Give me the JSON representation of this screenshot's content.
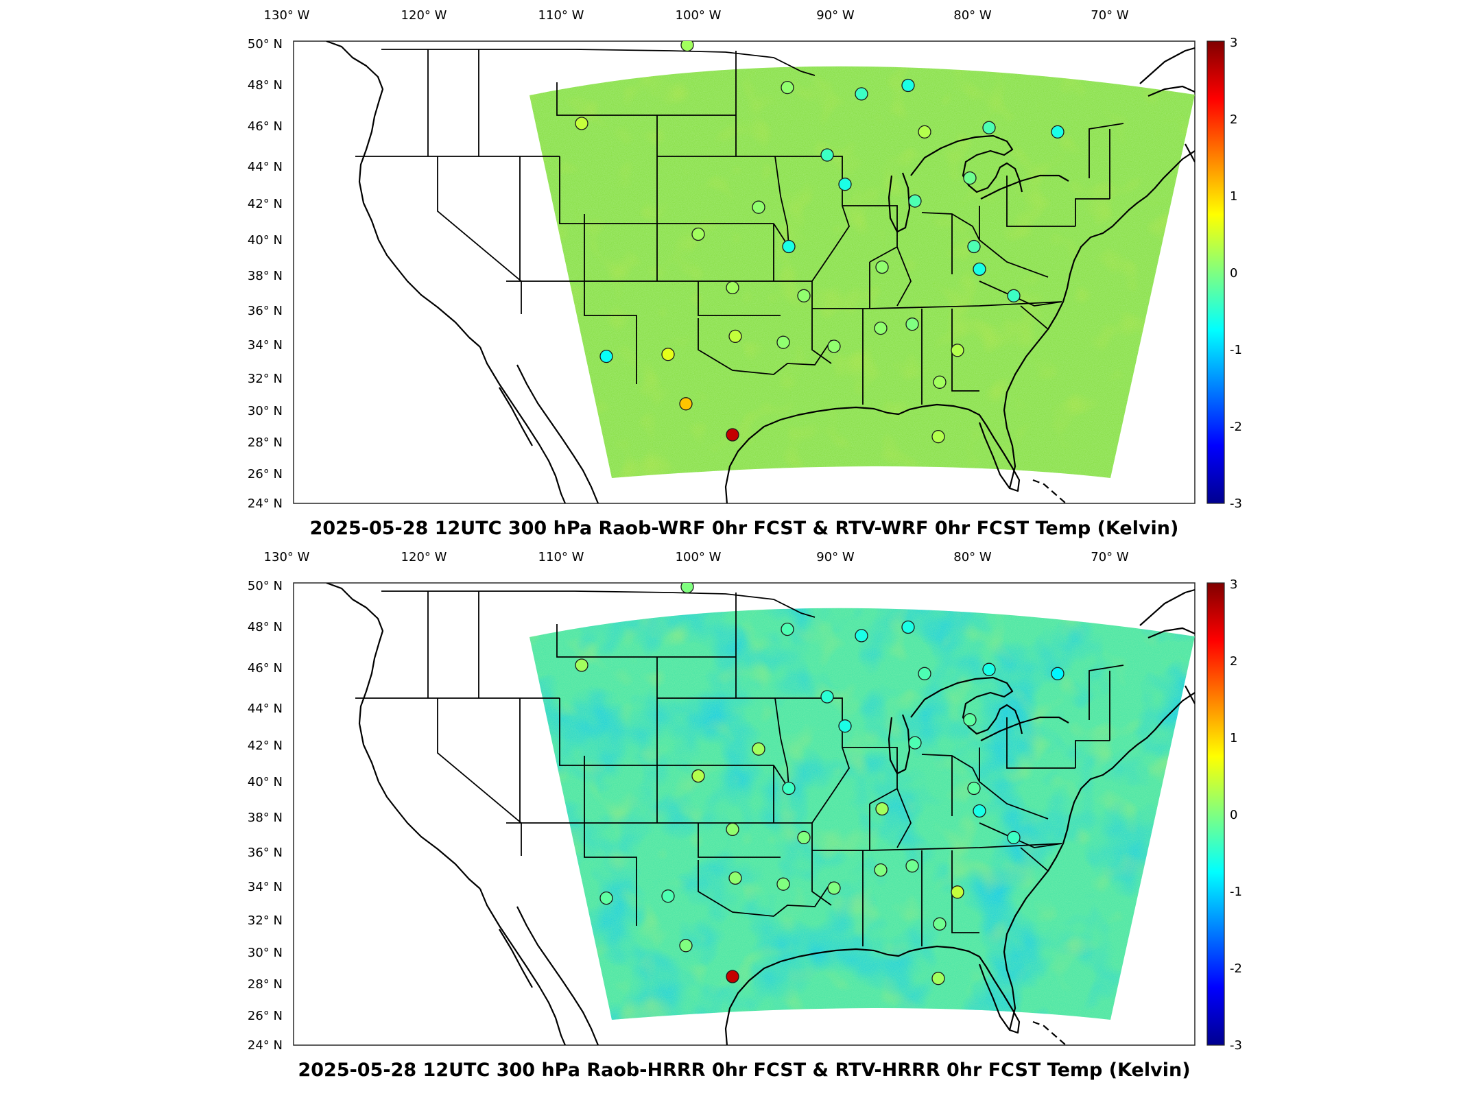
{
  "panels": [
    {
      "title": "2025-05-28 12UTC 300 hPa Raob-WRF 0hr FCST & RTV-WRF 0hr FCST Temp (Kelvin)",
      "variant": "wrf",
      "lon_labels": [
        "130° W",
        "120° W",
        "110° W",
        "100° W",
        "90° W",
        "80° W",
        "70° W"
      ],
      "lat_labels": [
        "50° N",
        "48° N",
        "46° N",
        "44° N",
        "42° N",
        "40° N",
        "38° N",
        "36° N",
        "34° N",
        "32° N",
        "30° N",
        "28° N",
        "26° N",
        "24° N"
      ],
      "colorbar_ticks": [
        "3",
        "2",
        "1",
        "0",
        "-1",
        "-2",
        "-3"
      ]
    },
    {
      "title": "2025-05-28 12UTC 300 hPa Raob-HRRR 0hr FCST & RTV-HRRR 0hr FCST Temp (Kelvin)",
      "variant": "hrrr",
      "lon_labels": [
        "130° W",
        "120° W",
        "110° W",
        "100° W",
        "90° W",
        "80° W",
        "70° W"
      ],
      "lat_labels": [
        "50° N",
        "48° N",
        "46° N",
        "44° N",
        "42° N",
        "40° N",
        "38° N",
        "36° N",
        "34° N",
        "32° N",
        "30° N",
        "28° N",
        "26° N",
        "24° N"
      ],
      "colorbar_ticks": [
        "3",
        "2",
        "1",
        "0",
        "-1",
        "-2",
        "-3"
      ]
    }
  ],
  "colormap": [
    "#00008f",
    "#0000ff",
    "#0080ff",
    "#00ffff",
    "#80ff80",
    "#ffff00",
    "#ff8000",
    "#ff0000",
    "#800000"
  ],
  "colorbar_range": [
    -3,
    3
  ],
  "stations": [
    {
      "lon": -106.6,
      "lat": 48.2,
      "wrf": 0.8,
      "hrrr": 0.1
    },
    {
      "lon": -93.3,
      "lat": 48.6,
      "wrf": -0.7,
      "hrrr": -0.8
    },
    {
      "lon": -100.8,
      "lat": 46.8,
      "wrf": 0.2,
      "hrrr": 0.0
    },
    {
      "lon": -93.5,
      "lat": 44.8,
      "wrf": 0.1,
      "hrrr": -0.3
    },
    {
      "lon": -88.1,
      "lat": 44.5,
      "wrf": -0.4,
      "hrrr": -0.6
    },
    {
      "lon": -84.7,
      "lat": 44.9,
      "wrf": -0.6,
      "hrrr": -0.6
    },
    {
      "lon": -108.5,
      "lat": 43.1,
      "wrf": 0.4,
      "hrrr": 0.2
    },
    {
      "lon": -90.6,
      "lat": 41.6,
      "wrf": -0.4,
      "hrrr": -0.5
    },
    {
      "lon": -83.5,
      "lat": 42.7,
      "wrf": 0.3,
      "hrrr": -0.3
    },
    {
      "lon": -78.8,
      "lat": 42.9,
      "wrf": -0.3,
      "hrrr": -0.6
    },
    {
      "lon": -73.8,
      "lat": 42.7,
      "wrf": -0.6,
      "hrrr": -0.8
    },
    {
      "lon": -89.3,
      "lat": 40.2,
      "wrf": -0.6,
      "hrrr": -0.6
    },
    {
      "lon": -84.2,
      "lat": 39.4,
      "wrf": -0.3,
      "hrrr": -0.3
    },
    {
      "lon": -80.2,
      "lat": 40.5,
      "wrf": -0.1,
      "hrrr": -0.2
    },
    {
      "lon": -95.6,
      "lat": 39.1,
      "wrf": 0.1,
      "hrrr": 0.2
    },
    {
      "lon": -100.0,
      "lat": 37.8,
      "wrf": 0.2,
      "hrrr": 0.3
    },
    {
      "lon": -93.4,
      "lat": 37.2,
      "wrf": -0.6,
      "hrrr": -0.4
    },
    {
      "lon": -79.9,
      "lat": 37.2,
      "wrf": -0.3,
      "hrrr": -0.2
    },
    {
      "lon": -86.6,
      "lat": 36.2,
      "wrf": 0.1,
      "hrrr": 0.2
    },
    {
      "lon": -79.5,
      "lat": 36.1,
      "wrf": -0.6,
      "hrrr": -0.6
    },
    {
      "lon": -97.5,
      "lat": 35.2,
      "wrf": 0.2,
      "hrrr": 0.1
    },
    {
      "lon": -92.3,
      "lat": 34.8,
      "wrf": 0.1,
      "hrrr": 0.0
    },
    {
      "lon": -77.0,
      "lat": 34.8,
      "wrf": -0.4,
      "hrrr": -0.4
    },
    {
      "lon": -97.3,
      "lat": 32.8,
      "wrf": 0.4,
      "hrrr": 0.1
    },
    {
      "lon": -93.8,
      "lat": 32.5,
      "wrf": 0.1,
      "hrrr": 0.0
    },
    {
      "lon": -90.1,
      "lat": 32.3,
      "wrf": 0.1,
      "hrrr": 0.0
    },
    {
      "lon": -86.7,
      "lat": 33.2,
      "wrf": 0.1,
      "hrrr": 0.0
    },
    {
      "lon": -84.4,
      "lat": 33.4,
      "wrf": 0.0,
      "hrrr": -0.1
    },
    {
      "lon": -81.1,
      "lat": 32.1,
      "wrf": 0.3,
      "hrrr": 0.4
    },
    {
      "lon": -102.2,
      "lat": 31.9,
      "wrf": 0.6,
      "hrrr": -0.3
    },
    {
      "lon": -106.7,
      "lat": 31.8,
      "wrf": -0.7,
      "hrrr": -0.2
    },
    {
      "lon": -100.9,
      "lat": 29.4,
      "wrf": 1.1,
      "hrrr": 0.0
    },
    {
      "lon": -97.5,
      "lat": 27.8,
      "wrf": 2.6,
      "hrrr": 2.6
    },
    {
      "lon": -82.4,
      "lat": 30.5,
      "wrf": 0.2,
      "hrrr": -0.1
    },
    {
      "lon": -82.5,
      "lat": 27.7,
      "wrf": 0.3,
      "hrrr": 0.2
    }
  ]
}
